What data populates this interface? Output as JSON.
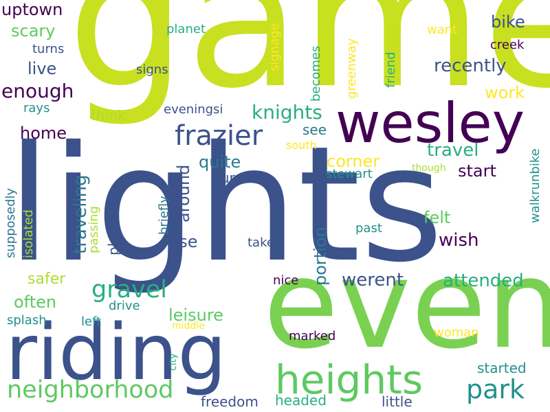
{
  "palette": {
    "dark_purple": "#440154",
    "indigo": "#3b528b",
    "teal_blue": "#2a788e",
    "teal": "#21918c",
    "green": "#28ae80",
    "light_green": "#5ec962",
    "lime": "#addc30",
    "yellow_green": "#c8e020",
    "yellow": "#fde725"
  },
  "words": {
    "game": "game",
    "lights": "lights",
    "even": "even",
    "riding": "riding",
    "wesley": "wesley",
    "heights": "heights",
    "frazier": "frazier",
    "neighborhood": "neighborhood",
    "gravel": "gravel",
    "park": "park",
    "knights": "knights",
    "uptown": "uptown",
    "scary": "scary",
    "live": "live",
    "enough": "enough",
    "home": "home",
    "rays": "rays",
    "think": "think",
    "eveningsi": "eveningsi",
    "planet": "planet",
    "signs": "signs",
    "turns": "turns",
    "signage": "signage",
    "becomes": "becomes",
    "greenway": "greenway",
    "friend": "friend",
    "want": "want",
    "bike": "bike",
    "creek": "creek",
    "recently": "recently",
    "work": "work",
    "see": "see",
    "south": "south",
    "travel": "travel",
    "quite": "quite",
    "around": "around",
    "corner": "corner",
    "start": "start",
    "stewart": "stewart",
    "though": "though",
    "turnoff": "turnoff",
    "walkrunbike": "walkrunbike",
    "traveling": "traveling",
    "felt": "felt",
    "wish": "wish",
    "supposedly": "supposedly",
    "isolated": "isolated",
    "passing": "passing",
    "briefly": "briefly",
    "places": "places",
    "use": "use",
    "portion": "portion",
    "take": "take",
    "past": "past",
    "safer": "safer",
    "often": "often",
    "nice": "nice",
    "werent": "werent",
    "attended": "attended",
    "drive": "drive",
    "leisure": "leisure",
    "splash": "splash",
    "left": "left",
    "middle": "middle",
    "city": "city",
    "marked": "marked",
    "woman": "woman",
    "started": "started",
    "freedom": "freedom",
    "headed": "headed",
    "little": "little"
  }
}
